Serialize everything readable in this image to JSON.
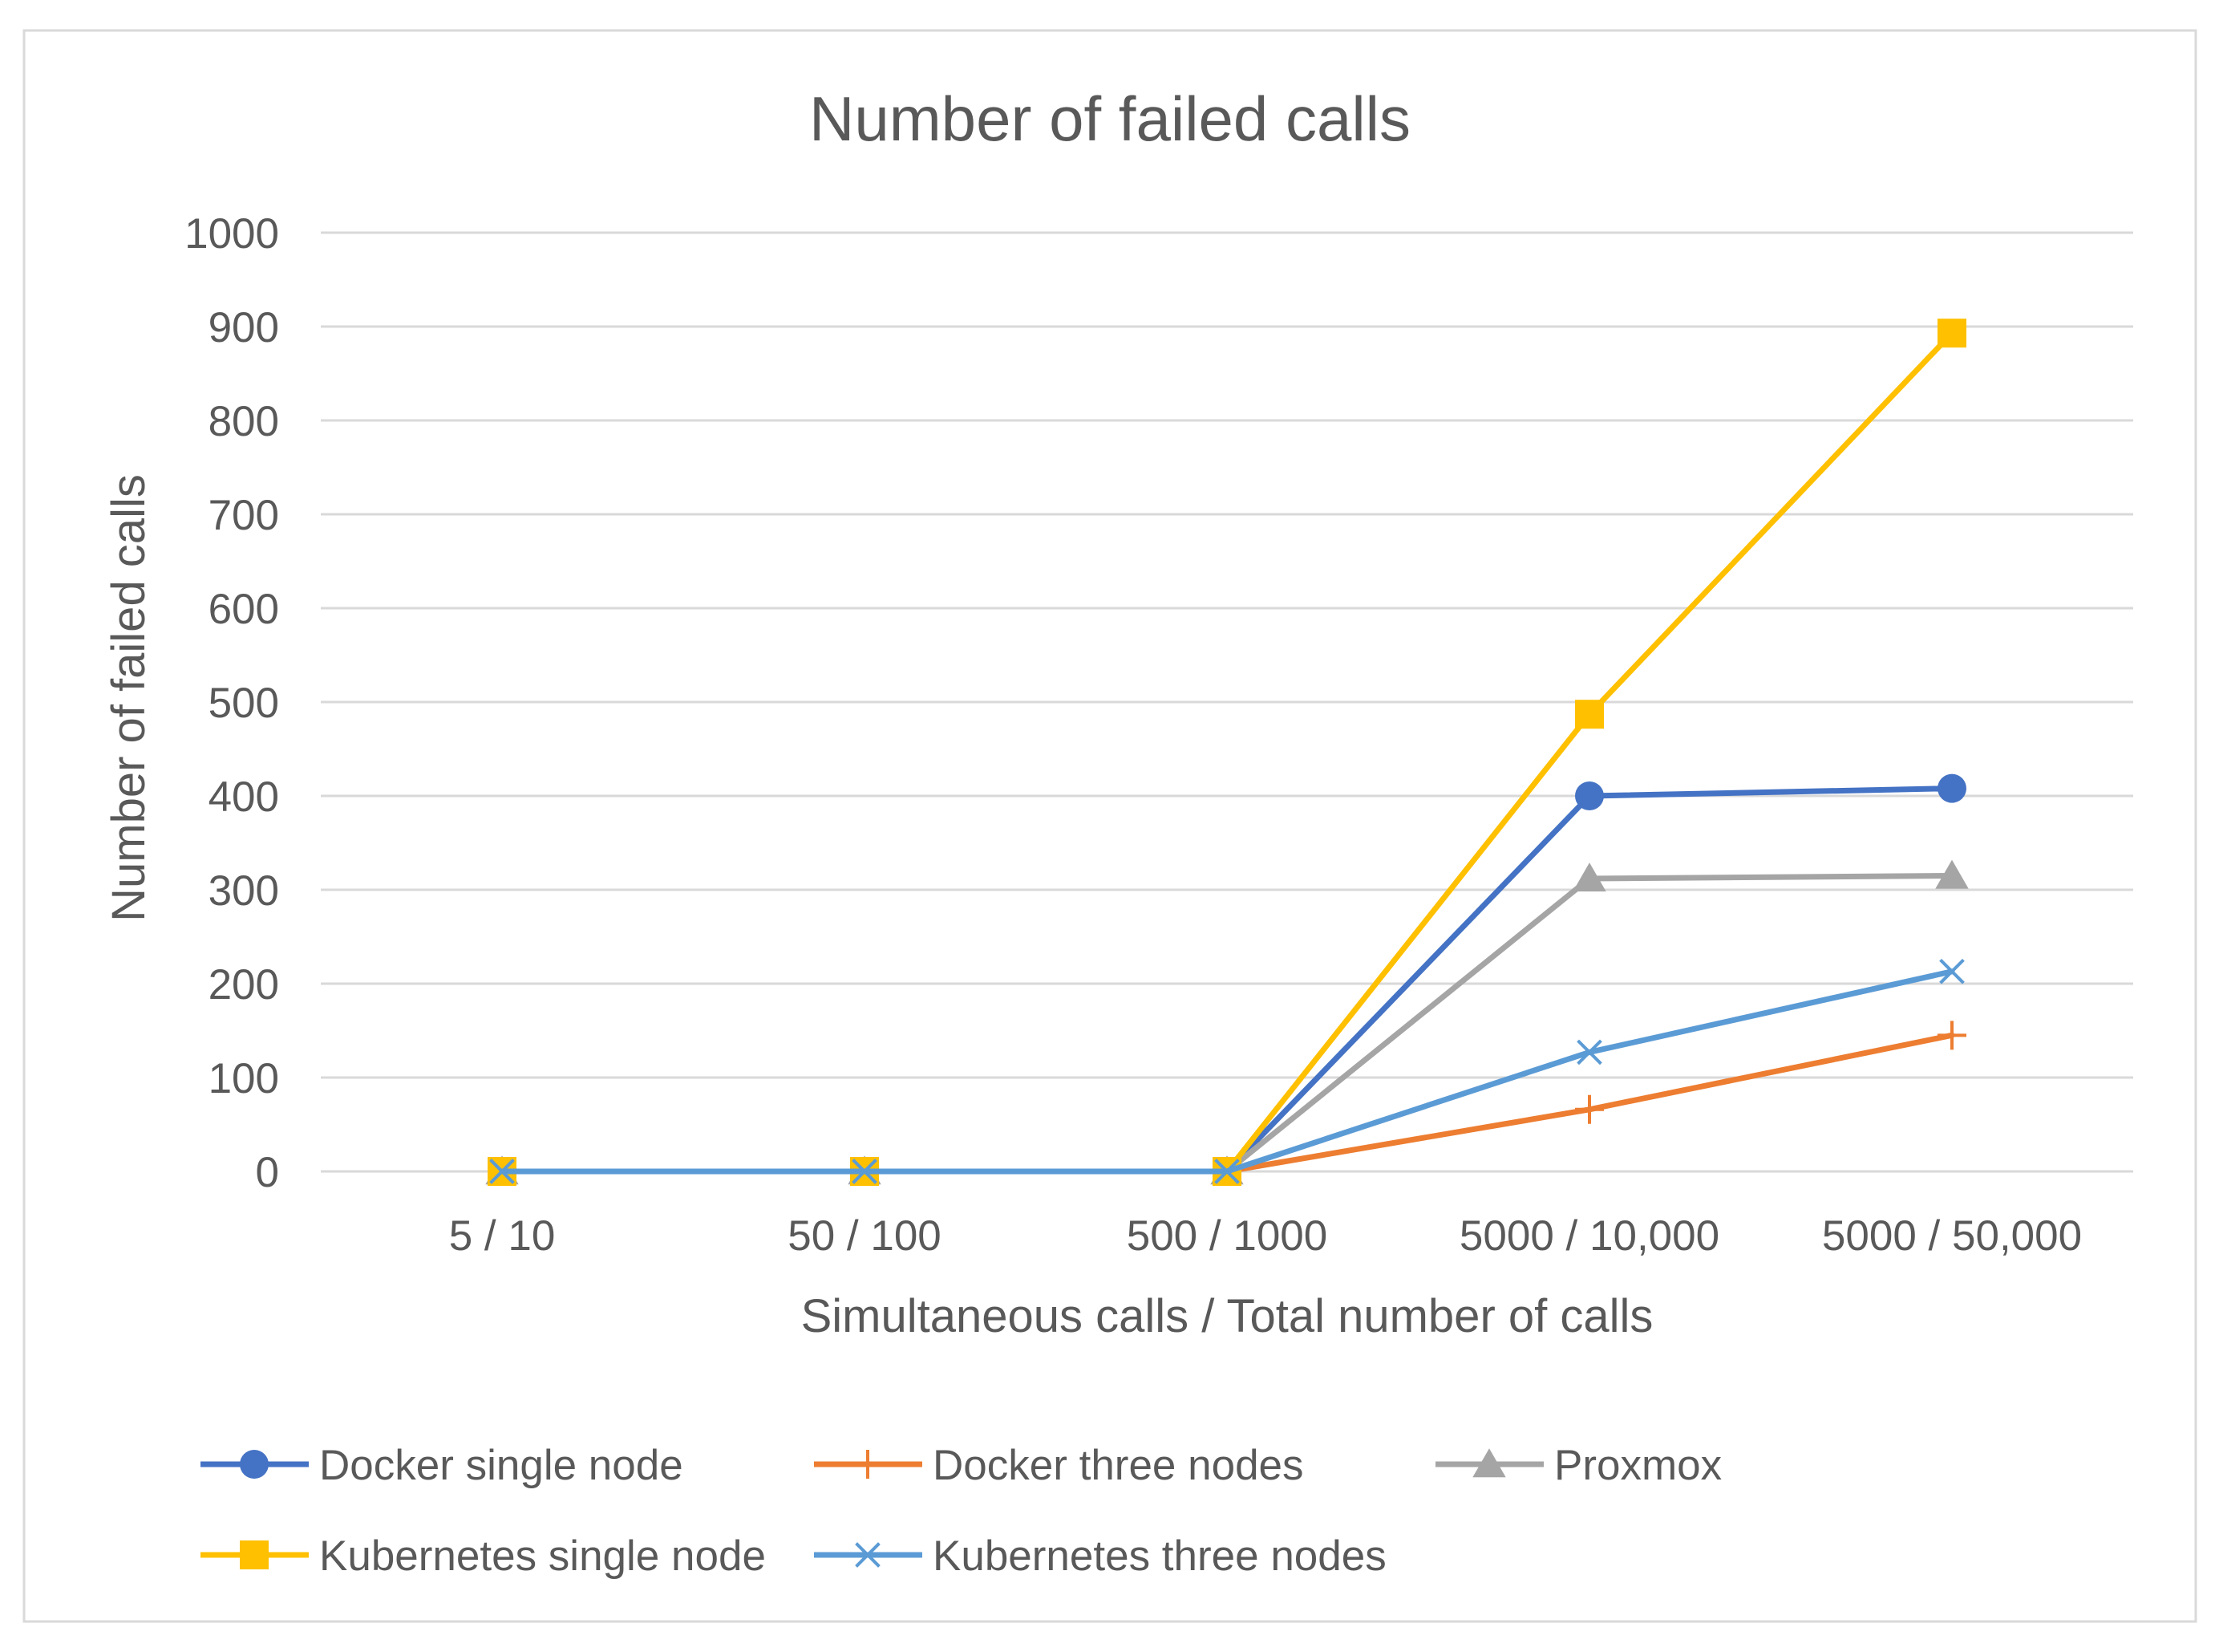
{
  "chart_data": {
    "type": "line",
    "title": "Number of failed calls",
    "xlabel": "Simultaneous calls / Total number of calls",
    "ylabel": "Number of failed calls",
    "categories": [
      "5 / 10",
      "50 / 100",
      "500 / 1000",
      "5000 / 10,000",
      "5000 / 50,000"
    ],
    "ylim": [
      0,
      1000
    ],
    "yticks": [
      0,
      100,
      200,
      300,
      400,
      500,
      600,
      700,
      800,
      900,
      1000
    ],
    "grid": "horizontal",
    "legend_position": "bottom",
    "series": [
      {
        "name": "Docker single node",
        "values": [
          0,
          0,
          0,
          400,
          408
        ],
        "color": "#4472c4",
        "marker": "circle"
      },
      {
        "name": "Docker three nodes",
        "values": [
          0,
          0,
          0,
          66,
          145
        ],
        "color": "#ed7d31",
        "marker": "plus"
      },
      {
        "name": "Proxmox",
        "values": [
          0,
          0,
          0,
          312,
          315
        ],
        "color": "#a5a5a5",
        "marker": "triangle"
      },
      {
        "name": "Kubernetes single node",
        "values": [
          0,
          0,
          0,
          487,
          893
        ],
        "color": "#ffc000",
        "marker": "square"
      },
      {
        "name": "Kubernetes three nodes",
        "values": [
          0,
          0,
          0,
          127,
          213
        ],
        "color": "#5b9bd5",
        "marker": "x"
      }
    ]
  }
}
